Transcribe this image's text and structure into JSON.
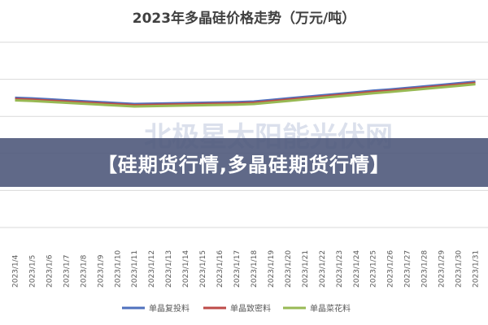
{
  "banner": {
    "text": "【硅期货行情,多晶硅期货行情】"
  },
  "watermark": {
    "text": "北极星太阳能光伏网"
  },
  "colors": {
    "series": [
      "#4f71be",
      "#be4b48",
      "#98b954"
    ],
    "grid": "#d9d9d9",
    "banner_bg": "#4a5478"
  },
  "chart_data": {
    "type": "line",
    "title": "2023年多晶硅价格走势（万元/吨）",
    "xlabel": "",
    "ylabel": "",
    "ylim": [
      0,
      30
    ],
    "grid": true,
    "legend": "bottom",
    "x": [
      "2023/1/4",
      "2023/1/5",
      "2023/1/6",
      "2023/1/7",
      "2023/1/8",
      "2023/1/9",
      "2023/1/10",
      "2023/1/11",
      "2023/1/12",
      "2023/1/13",
      "2023/1/14",
      "2023/1/15",
      "2023/1/16",
      "2023/1/17",
      "2023/1/18",
      "2023/1/19",
      "2023/1/20",
      "2023/1/21",
      "2023/1/22",
      "2023/1/23",
      "2023/1/24",
      "2023/1/25",
      "2023/1/26",
      "2023/1/27",
      "2023/1/28",
      "2023/1/29",
      "2023/1/30",
      "2023/1/31"
    ],
    "series": [
      {
        "name": "单晶复投料",
        "values": [
          21.0,
          20.9,
          20.75,
          20.6,
          20.45,
          20.3,
          20.15,
          20.0,
          20.05,
          20.1,
          20.15,
          20.2,
          20.25,
          20.3,
          20.4,
          20.65,
          20.9,
          21.15,
          21.4,
          21.65,
          21.9,
          22.15,
          22.35,
          22.6,
          22.85,
          23.1,
          23.35,
          23.6
        ]
      },
      {
        "name": "单晶致密料",
        "values": [
          20.8,
          20.7,
          20.55,
          20.4,
          20.25,
          20.1,
          19.95,
          19.8,
          19.85,
          19.9,
          19.95,
          20.0,
          20.05,
          20.1,
          20.2,
          20.45,
          20.7,
          20.95,
          21.2,
          21.45,
          21.7,
          21.95,
          22.15,
          22.4,
          22.65,
          22.9,
          23.15,
          23.4
        ]
      },
      {
        "name": "单晶菜花料",
        "values": [
          20.6,
          20.5,
          20.35,
          20.2,
          20.05,
          19.9,
          19.75,
          19.6,
          19.65,
          19.7,
          19.75,
          19.8,
          19.85,
          19.9,
          20.0,
          20.25,
          20.5,
          20.75,
          21.0,
          21.25,
          21.5,
          21.75,
          21.95,
          22.2,
          22.45,
          22.7,
          22.95,
          23.2
        ]
      }
    ]
  }
}
